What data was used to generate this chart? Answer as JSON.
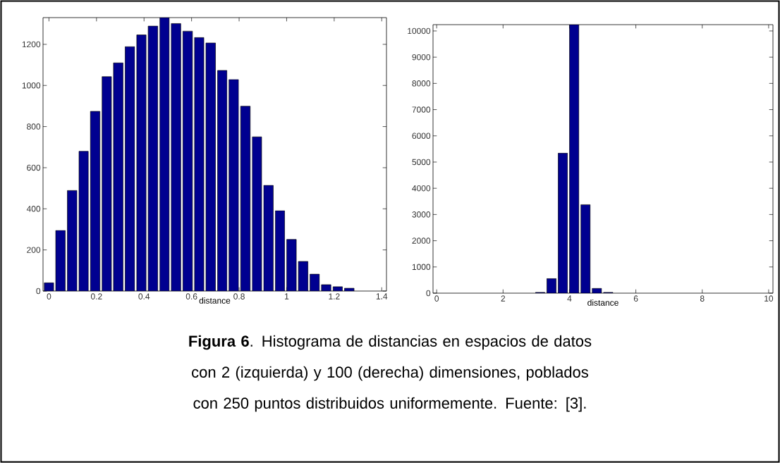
{
  "chart_data": [
    {
      "type": "histogram",
      "xlabel": "distance",
      "color": "#000090",
      "bins": [
        -0.024,
        0.024,
        0.073,
        0.122,
        0.17,
        0.219,
        0.267,
        0.316,
        0.365,
        0.413,
        0.462,
        0.51,
        0.559,
        0.608,
        0.656,
        0.705,
        0.753,
        0.802,
        0.851,
        0.899,
        0.948,
        0.996,
        1.045,
        1.094,
        1.142,
        1.191,
        1.239,
        1.288
      ],
      "values": [
        40,
        295,
        489,
        680,
        874,
        1043,
        1110,
        1189,
        1246,
        1289,
        1330,
        1301,
        1264,
        1233,
        1207,
        1073,
        1029,
        899,
        750,
        514,
        391,
        251,
        144,
        82,
        31,
        21,
        14
      ],
      "xlim": [
        -0.025,
        1.42
      ],
      "ylim": [
        0,
        1330
      ],
      "xticks": [
        0,
        0.2,
        0.4,
        0.6,
        0.8,
        1,
        1.2,
        1.4
      ],
      "yticks": [
        0,
        200,
        400,
        600,
        800,
        1000,
        1200
      ],
      "annotations": [
        "**Figura 6**. Histograma de distancias en espacios de datos con 2 (izquierda) y 100 (derecha) dimensiones, poblados con 250 puntos distribuidos uniformemente. Fuente: [3]."
      ]
    },
    {
      "type": "histogram",
      "xlabel": "distance",
      "color": "#000090",
      "bins": [
        2.946,
        3.288,
        3.629,
        3.971,
        4.313,
        4.654,
        4.996,
        5.338
      ],
      "values": [
        30,
        556,
        5340,
        10240,
        3375,
        182,
        30
      ],
      "xlim": [
        -0.11,
        10.13
      ],
      "ylim": [
        0,
        10240
      ],
      "xticks": [
        0,
        2,
        4,
        6,
        8,
        10
      ],
      "yticks": [
        0,
        1000,
        2000,
        3000,
        4000,
        5000,
        6000,
        7000,
        8000,
        9000,
        10000
      ]
    }
  ]
}
